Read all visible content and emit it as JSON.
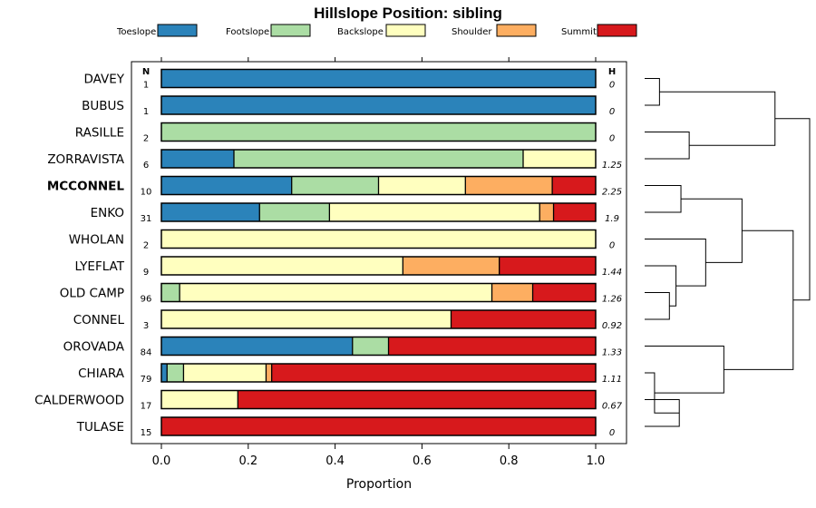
{
  "chart_data": {
    "type": "bar",
    "orientation": "horizontal-stacked",
    "title": "Hillslope Position: sibling",
    "xlabel": "Proportion",
    "xlim": [
      0,
      1
    ],
    "x_ticks": [
      "0.0",
      "0.2",
      "0.4",
      "0.6",
      "0.8",
      "1.0"
    ],
    "legend_position": "top",
    "n_header": "N",
    "h_header": "H",
    "series": [
      {
        "name": "Toeslope",
        "color": "#2b83ba"
      },
      {
        "name": "Footslope",
        "color": "#abdda4"
      },
      {
        "name": "Backslope",
        "color": "#ffffbf"
      },
      {
        "name": "Shoulder",
        "color": "#fdae61"
      },
      {
        "name": "Summit",
        "color": "#d7191c"
      }
    ],
    "categories": [
      {
        "label": "DAVEY",
        "n": "1",
        "h": "0",
        "bold": false,
        "values": [
          1,
          0,
          0,
          0,
          0
        ]
      },
      {
        "label": "BUBUS",
        "n": "1",
        "h": "0",
        "bold": false,
        "values": [
          1,
          0,
          0,
          0,
          0
        ]
      },
      {
        "label": "RASILLE",
        "n": "2",
        "h": "0",
        "bold": false,
        "values": [
          0,
          1,
          0,
          0,
          0
        ]
      },
      {
        "label": "ZORRAVISTA",
        "n": "6",
        "h": "1.25",
        "bold": false,
        "values": [
          0.167,
          0.666,
          0.167,
          0,
          0
        ]
      },
      {
        "label": "MCCONNEL",
        "n": "10",
        "h": "2.25",
        "bold": true,
        "values": [
          0.3,
          0.2,
          0.2,
          0.2,
          0.1
        ]
      },
      {
        "label": "ENKO",
        "n": "31",
        "h": "1.9",
        "bold": false,
        "values": [
          0.226,
          0.161,
          0.484,
          0.032,
          0.097
        ]
      },
      {
        "label": "WHOLAN",
        "n": "2",
        "h": "0",
        "bold": false,
        "values": [
          0,
          0,
          1,
          0,
          0
        ]
      },
      {
        "label": "LYEFLAT",
        "n": "9",
        "h": "1.44",
        "bold": false,
        "values": [
          0,
          0,
          0.556,
          0.222,
          0.222
        ]
      },
      {
        "label": "OLD CAMP",
        "n": "96",
        "h": "1.26",
        "bold": false,
        "values": [
          0,
          0.042,
          0.719,
          0.094,
          0.145
        ]
      },
      {
        "label": "CONNEL",
        "n": "3",
        "h": "0.92",
        "bold": false,
        "values": [
          0,
          0,
          0.667,
          0,
          0.333
        ]
      },
      {
        "label": "OROVADA",
        "n": "84",
        "h": "1.33",
        "bold": false,
        "values": [
          0.44,
          0.083,
          0,
          0,
          0.477
        ]
      },
      {
        "label": "CHIARA",
        "n": "79",
        "h": "1.11",
        "bold": false,
        "values": [
          0.013,
          0.038,
          0.19,
          0.013,
          0.746
        ]
      },
      {
        "label": "CALDERWOOD",
        "n": "17",
        "h": "0.67",
        "bold": false,
        "values": [
          0,
          0,
          0.176,
          0,
          0.824
        ]
      },
      {
        "label": "TULASE",
        "n": "15",
        "h": "0",
        "bold": false,
        "values": [
          0,
          0,
          0,
          0,
          1
        ]
      }
    ],
    "dendrogram": {
      "leaves": [
        "DAVEY",
        "BUBUS",
        "RASILLE",
        "ZORRAVISTA",
        "MCCONNEL",
        "ENKO",
        "WHOLAN",
        "LYEFLAT",
        "OLD CAMP",
        "CONNEL",
        "OROVADA",
        "CHIARA",
        "CALDERWOOD",
        "TULASE"
      ],
      "max_height": 1.0,
      "merges": [
        {
          "a": 0,
          "b": 1,
          "h": 0.09
        },
        {
          "a": 2,
          "b": 3,
          "h": 0.27
        },
        {
          "a": 4,
          "b": 5,
          "h": 0.22
        },
        {
          "a": 8,
          "b": 9,
          "h": 0.15
        },
        {
          "a": 7,
          "b": -4,
          "h": 0.19
        },
        {
          "a": 6,
          "b": -5,
          "h": 0.37
        },
        {
          "a": -3,
          "b": -6,
          "h": 0.59
        },
        {
          "a": -1,
          "b": -2,
          "h": 0.79
        },
        {
          "a": 12,
          "b": 13,
          "h": 0.21
        },
        {
          "a": 11,
          "b": -9,
          "h": 0.06
        },
        {
          "a": 10,
          "b": -10,
          "h": 0.48
        },
        {
          "a": -7,
          "b": -11,
          "h": 0.9
        },
        {
          "a": -8,
          "b": -12,
          "h": 1.0
        }
      ]
    }
  }
}
